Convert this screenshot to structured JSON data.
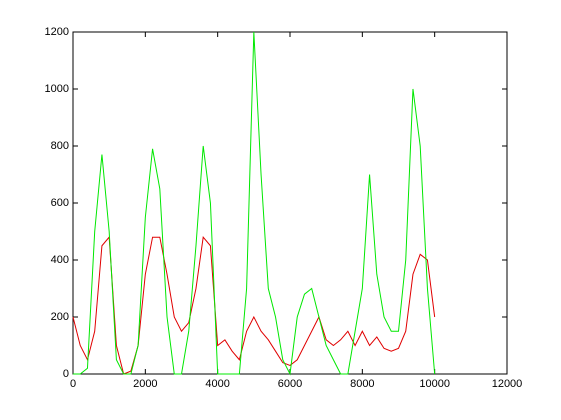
{
  "chart_data": {
    "type": "line",
    "x": [
      0,
      200,
      400,
      600,
      800,
      1000,
      1200,
      1400,
      1600,
      1800,
      2000,
      2200,
      2400,
      2600,
      2800,
      3000,
      3200,
      3400,
      3600,
      3800,
      4000,
      4200,
      4400,
      4600,
      4800,
      5000,
      5200,
      5400,
      5600,
      5800,
      6000,
      6200,
      6400,
      6600,
      6800,
      7000,
      7200,
      7400,
      7600,
      7800,
      8000,
      8200,
      8400,
      8600,
      8800,
      9000,
      9200,
      9400,
      9600,
      9800,
      10000
    ],
    "series": [
      {
        "color": "#e00000",
        "values": [
          200,
          100,
          50,
          150,
          450,
          480,
          100,
          0,
          10,
          100,
          350,
          480,
          480,
          350,
          200,
          150,
          180,
          300,
          480,
          450,
          100,
          120,
          80,
          50,
          150,
          200,
          150,
          120,
          80,
          40,
          30,
          50,
          100,
          150,
          200,
          120,
          100,
          120,
          150,
          100,
          150,
          100,
          130,
          90,
          80,
          90,
          150,
          350,
          420,
          400,
          200
        ]
      },
      {
        "color": "#00e800",
        "values": [
          0,
          0,
          20,
          500,
          770,
          500,
          50,
          0,
          0,
          100,
          550,
          790,
          650,
          200,
          0,
          0,
          150,
          450,
          800,
          600,
          0,
          0,
          0,
          0,
          300,
          1200,
          700,
          300,
          200,
          50,
          0,
          200,
          280,
          300,
          200,
          100,
          50,
          0,
          0,
          150,
          300,
          700,
          350,
          200,
          150,
          150,
          400,
          1000,
          800,
          300,
          0
        ]
      }
    ],
    "xlim": [
      0,
      12000
    ],
    "xticks": [
      0,
      2000,
      4000,
      6000,
      8000,
      10000,
      12000
    ],
    "ylim": [
      0,
      1200
    ],
    "yticks": [
      0,
      200,
      400,
      600,
      800,
      1000,
      1200
    ]
  }
}
